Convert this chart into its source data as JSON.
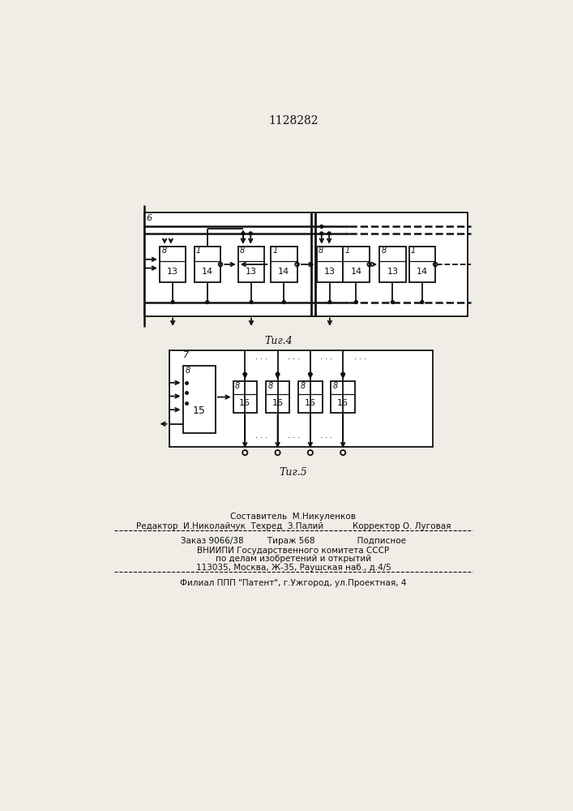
{
  "title": "1128282",
  "bg_color": "#f0ede6",
  "fig4_caption": "Τиг.4",
  "fig5_caption": "Τиг.5",
  "footer_line1": "Составитель  М.Никуленков",
  "footer_line2": "Редактор  И.Николайчук  Техред  З.Палий           Корректор О. Луговая",
  "footer_line3": "Заказ 9066/38         Тираж 568                Подписное",
  "footer_line4": "ВНИИПИ Государственного комитета СССР",
  "footer_line5": "по делам изобретений и открытий",
  "footer_line6": "113035, Москва, Ж-35, Раушская наб., д.4/5",
  "footer_line7": "Филиал ППП \"Патент\", г.Ужгород, ул.Проектная, 4"
}
